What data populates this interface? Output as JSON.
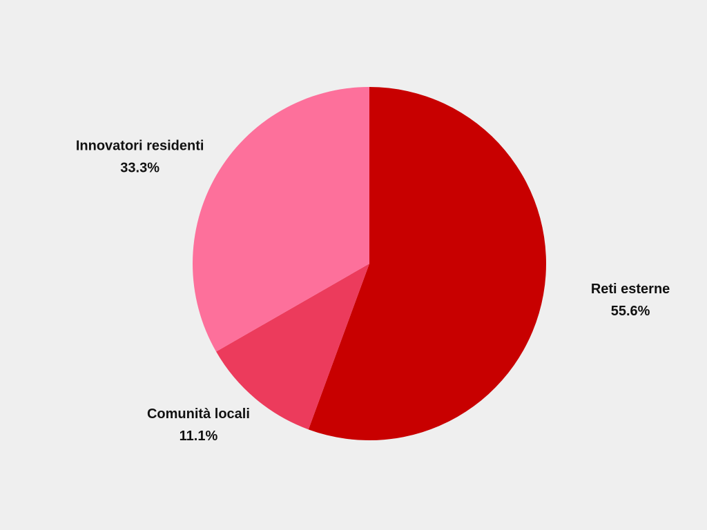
{
  "chart_data": {
    "type": "pie",
    "categories": [
      "Reti esterne",
      "Comunità locali",
      "Innovatori residenti"
    ],
    "values": [
      55.6,
      11.1,
      33.3
    ],
    "value_labels": [
      "55.6%",
      "11.1%",
      "33.3%"
    ],
    "colors": [
      "#c80000",
      "#ec3b5c",
      "#fd709b"
    ]
  }
}
